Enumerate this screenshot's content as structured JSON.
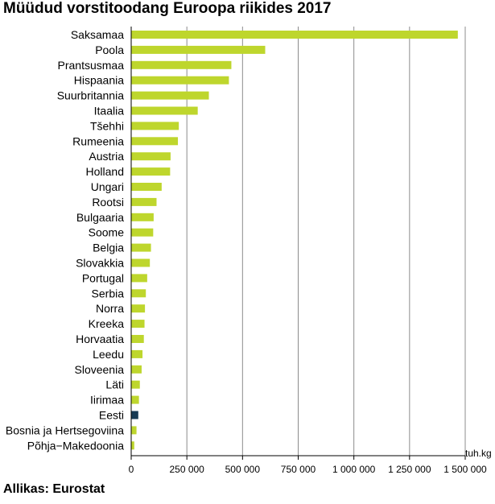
{
  "chart_data": {
    "type": "bar",
    "orientation": "horizontal",
    "title": "Müüdud vorstitoodang Euroopa riikides 2017",
    "source": "Allikas: Eurostat",
    "unit": "tuh.kg",
    "xlim": [
      0,
      1500000
    ],
    "xticks": [
      0,
      250000,
      500000,
      750000,
      1000000,
      1250000,
      1500000
    ],
    "xtick_labels": [
      "0",
      "250 000",
      "500 000",
      "750 000",
      "1 000 000",
      "1 250 000",
      "1 500 000"
    ],
    "grid": "vertical",
    "categories": [
      "Saksamaa",
      "Poola",
      "Prantsusmaa",
      "Hispaania",
      "Suurbritannia",
      "Itaalia",
      "Tšehhi",
      "Rumeenia",
      "Austria",
      "Holland",
      "Ungari",
      "Rootsi",
      "Bulgaaria",
      "Soome",
      "Belgia",
      "Slovakkia",
      "Portugal",
      "Serbia",
      "Norra",
      "Kreeka",
      "Horvaatia",
      "Leedu",
      "Sloveenia",
      "Läti",
      "Iirimaa",
      "Eesti",
      "Bosnia ja Hertsegoviina",
      "Põhja−Makedoonia"
    ],
    "values": [
      1465000,
      600000,
      448000,
      437000,
      347000,
      297000,
      212000,
      208000,
      175000,
      173000,
      135000,
      112000,
      99000,
      97000,
      87000,
      82000,
      70000,
      64000,
      60000,
      58000,
      55000,
      49000,
      45000,
      37000,
      33000,
      30000,
      22000,
      12000
    ],
    "highlight": "Eesti",
    "colors": {
      "bar": "#bed62d",
      "highlight": "#173a54",
      "grid": "#8c8c8c",
      "axis": "#000000"
    }
  }
}
